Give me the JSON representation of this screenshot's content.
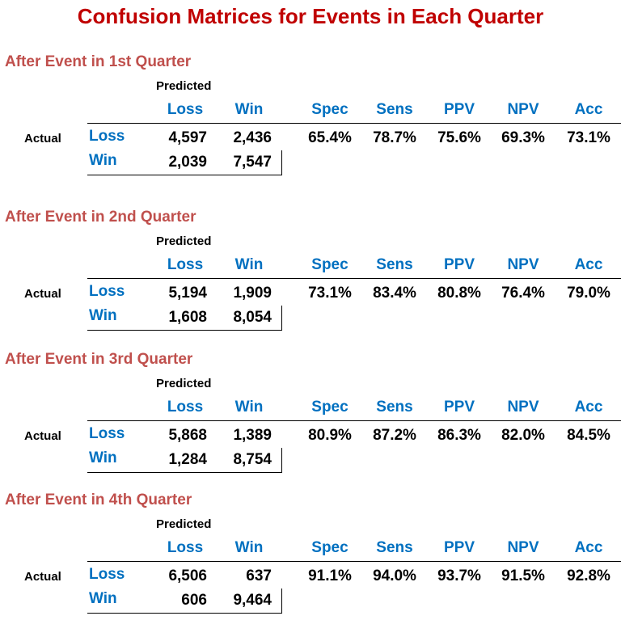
{
  "title": "Confusion Matrices for Events in Each Quarter",
  "labels": {
    "predicted": "Predicted",
    "actual": "Actual",
    "columns": [
      "Loss",
      "Win"
    ],
    "rows": [
      "Loss",
      "Win"
    ],
    "metrics": [
      "Spec",
      "Sens",
      "PPV",
      "NPV",
      "Acc"
    ]
  },
  "sections": [
    {
      "title": "After Event in 1st Quarter",
      "matrix": [
        [
          "4,597",
          "2,436"
        ],
        [
          "2,039",
          "7,547"
        ]
      ],
      "metrics": [
        "65.4%",
        "78.7%",
        "75.6%",
        "69.3%",
        "73.1%"
      ]
    },
    {
      "title": "After Event in 2nd Quarter",
      "matrix": [
        [
          "5,194",
          "1,909"
        ],
        [
          "1,608",
          "8,054"
        ]
      ],
      "metrics": [
        "73.1%",
        "83.4%",
        "80.8%",
        "76.4%",
        "79.0%"
      ]
    },
    {
      "title": "After Event in 3rd Quarter",
      "matrix": [
        [
          "5,868",
          "1,389"
        ],
        [
          "1,284",
          "8,754"
        ]
      ],
      "metrics": [
        "80.9%",
        "87.2%",
        "86.3%",
        "82.0%",
        "84.5%"
      ]
    },
    {
      "title": "After Event in 4th Quarter",
      "matrix": [
        [
          "6,506",
          "637"
        ],
        [
          "606",
          "9,464"
        ]
      ],
      "metrics": [
        "91.1%",
        "94.0%",
        "93.7%",
        "91.5%",
        "92.8%"
      ]
    }
  ],
  "colors": {
    "title": "#c00000",
    "section_title": "#c0504d",
    "header": "#0070c0",
    "text": "#000000"
  }
}
